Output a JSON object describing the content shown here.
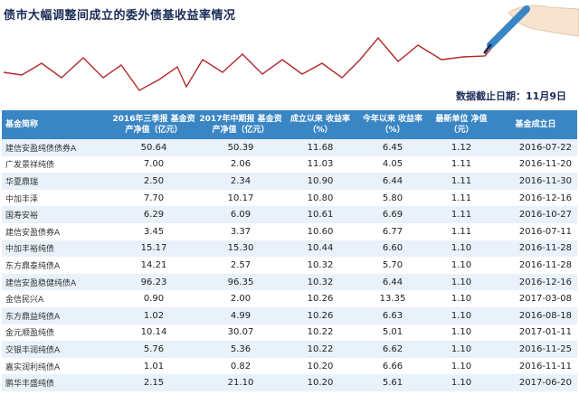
{
  "title": "债市大幅调整间成立的委外债基收益率情况",
  "date_note": "数据截止日期：11月9日",
  "colors": {
    "header_bg": "#3a86c5",
    "row_alt": "#e9f1fa",
    "trend_line": "#b22a2a",
    "title": "#1b2b57"
  },
  "table": {
    "headers": [
      "基金简称",
      "2016年三季报 基金资产净值（亿元）",
      "2017年中期报 基金资产净值（亿元）",
      "成立以来 收益率（%）",
      "今年以来 收益率（%）",
      "最新单位 净值（元）",
      "基金成立日"
    ],
    "rows": [
      [
        "建信安盈纯债债券A",
        "50.64",
        "50.39",
        "11.68",
        "6.45",
        "1.12",
        "2016-07-22"
      ],
      [
        "广发景祥纯债",
        "7.00",
        "2.06",
        "11.03",
        "4.05",
        "1.11",
        "2016-11-20"
      ],
      [
        "华夏鼎瑞",
        "2.50",
        "2.34",
        "10.90",
        "6.44",
        "1.11",
        "2016-11-30"
      ],
      [
        "中加丰泽",
        "7.70",
        "10.17",
        "10.80",
        "5.80",
        "1.11",
        "2016-12-16"
      ],
      [
        "国寿安裕",
        "6.29",
        "6.09",
        "10.61",
        "6.69",
        "1.11",
        "2016-10-27"
      ],
      [
        "建信安盈债券A",
        "3.45",
        "3.37",
        "10.60",
        "6.77",
        "1.11",
        "2016-07-11"
      ],
      [
        "中加丰裕纯债",
        "15.17",
        "15.30",
        "10.44",
        "6.60",
        "1.10",
        "2016-11-28"
      ],
      [
        "东方鼎泰纯债A",
        "14.21",
        "2.57",
        "10.32",
        "5.70",
        "1.10",
        "2016-11-28"
      ],
      [
        "建信安盈稳健纯债A",
        "96.23",
        "96.35",
        "10.32",
        "6.44",
        "1.10",
        "2016-12-16"
      ],
      [
        "金信民兴A",
        "0.90",
        "2.00",
        "10.26",
        "13.35",
        "1.10",
        "2017-03-08"
      ],
      [
        "东方鼎益纯债A",
        "1.02",
        "4.99",
        "10.26",
        "6.63",
        "1.10",
        "2016-08-18"
      ],
      [
        "金元顺盈纯债",
        "10.14",
        "30.07",
        "10.22",
        "5.01",
        "1.10",
        "2017-01-11"
      ],
      [
        "交银丰润纯债A",
        "5.76",
        "5.36",
        "10.22",
        "6.62",
        "1.10",
        "2016-11-25"
      ],
      [
        "嘉实润利纯债A",
        "1.01",
        "0.82",
        "10.20",
        "6.66",
        "1.10",
        "2016-11-11"
      ],
      [
        "鹏华丰盛纯债",
        "2.15",
        "21.10",
        "10.20",
        "5.61",
        "1.10",
        "2017-06-20"
      ]
    ]
  }
}
